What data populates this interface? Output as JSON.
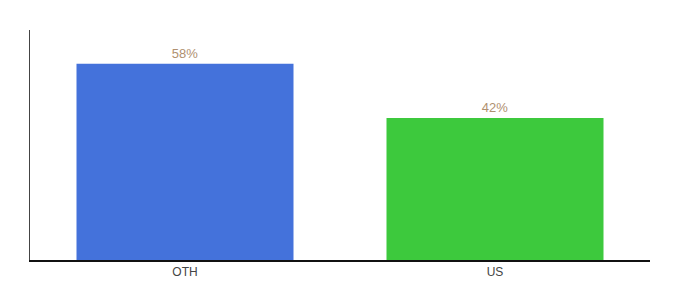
{
  "chart_data": {
    "type": "bar",
    "categories": [
      "OTH",
      "US"
    ],
    "values": [
      58,
      42
    ],
    "value_labels": [
      "58%",
      "42%"
    ],
    "colors": [
      "#4472db",
      "#3dc93d"
    ],
    "ylim": [
      0,
      68
    ],
    "grid": false,
    "data_labels": true,
    "tick_labels": "x"
  }
}
